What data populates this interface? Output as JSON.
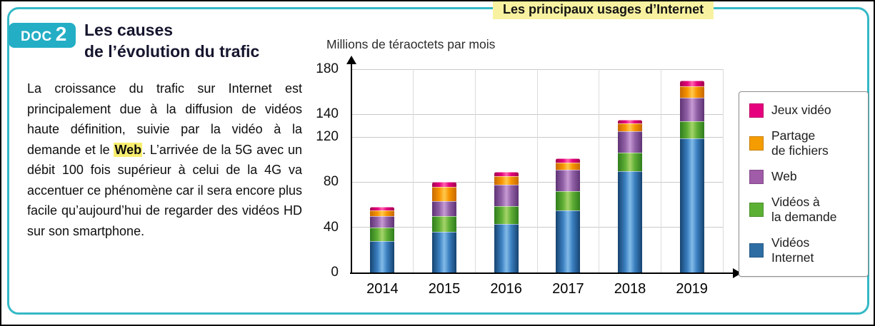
{
  "page": {
    "banner_title": "Les principaux usages d’Internet",
    "doc_badge": {
      "label": "DOC",
      "number": "2"
    },
    "heading_line1": "Les causes",
    "heading_line2": "de l’évolution du trafic",
    "paragraph": {
      "part1": "La croissance du trafic sur Internet est principalement due à la diffusion de vidéos haute définition, suivie par la vidéo à la demande et le ",
      "highlight": "Web",
      "part2": ". L’arrivée de la 5G avec un débit 100 fois supérieur à celui de la 4G va accentuer ce phénomène car il sera encore plus facile qu’aujourd’hui de regarder des vidéos HD sur son smartphone."
    },
    "colors": {
      "frame_teal": "#35b9c6",
      "badge_cyan": "#23aec5",
      "highlight_yellow": "#f8ee6e",
      "banner_yellow": "#f8f2a0"
    }
  },
  "chart_data": {
    "type": "bar",
    "stacked": true,
    "title": "Millions de téraoctets par mois",
    "categories": [
      "2014",
      "2015",
      "2016",
      "2017",
      "2018",
      "2019"
    ],
    "series": [
      {
        "name": "Vidéos Internet",
        "color": "#2d6da3",
        "values": [
          28,
          36,
          43,
          55,
          90,
          119
        ]
      },
      {
        "name": "Vidéos à la demande",
        "color": "#5cb034",
        "values": [
          12,
          14,
          16,
          17,
          16,
          15
        ]
      },
      {
        "name": "Web",
        "color": "#a05ca8",
        "values": [
          10,
          13,
          19,
          19,
          19,
          21
        ]
      },
      {
        "name": "Partage de fichiers",
        "color": "#f59c00",
        "values": [
          5,
          13,
          7,
          6,
          7,
          10
        ]
      },
      {
        "name": "Jeux vidéo",
        "color": "#e6007e",
        "values": [
          3,
          4,
          4,
          4,
          3,
          5
        ]
      }
    ],
    "legend_order": [
      "Jeux vidéo",
      "Partage de fichiers",
      "Web",
      "Vidéos à la demande",
      "Vidéos Internet"
    ],
    "legend_labels": {
      "Jeux vidéo": "Jeux vidéo",
      "Partage de fichiers": "Partage\nde fichiers",
      "Web": "Web",
      "Vidéos à la demande": "Vidéos à\nla demande",
      "Vidéos Internet": "Vidéos\nInternet"
    },
    "yticks": [
      0,
      40,
      80,
      120,
      140,
      180
    ],
    "ylim": [
      0,
      180
    ],
    "grid": true,
    "legend_position": "right"
  }
}
